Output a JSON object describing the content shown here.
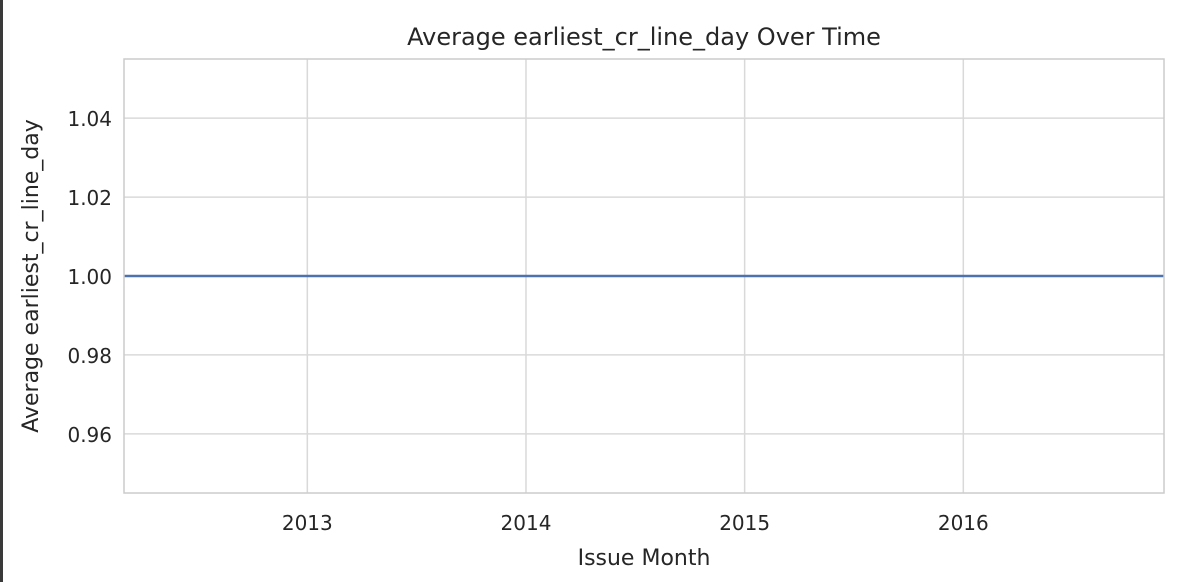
{
  "chart_data": {
    "type": "line",
    "title": "Average earliest_cr_line_day Over Time",
    "xlabel": "Issue Month",
    "ylabel": "Average earliest_cr_line_day",
    "x_ticks": [
      "2013",
      "2014",
      "2015",
      "2016"
    ],
    "x_range": [
      "2012-03-01",
      "2016-12-01"
    ],
    "y_ticks": [
      "0.96",
      "0.98",
      "1.00",
      "1.02",
      "1.04"
    ],
    "y_tick_values": [
      0.96,
      0.98,
      1.0,
      1.02,
      1.04
    ],
    "ylim": [
      0.945,
      1.055
    ],
    "grid": true,
    "series": [
      {
        "x": [
          "2012-03-01",
          "2016-12-01"
        ],
        "values": [
          1.0,
          1.0
        ],
        "color": "#4c72b0"
      }
    ]
  },
  "colors": {
    "line": "#4c72b0",
    "grid": "#d9d9d9",
    "axes_border": "#cccccc",
    "text": "#262626"
  }
}
